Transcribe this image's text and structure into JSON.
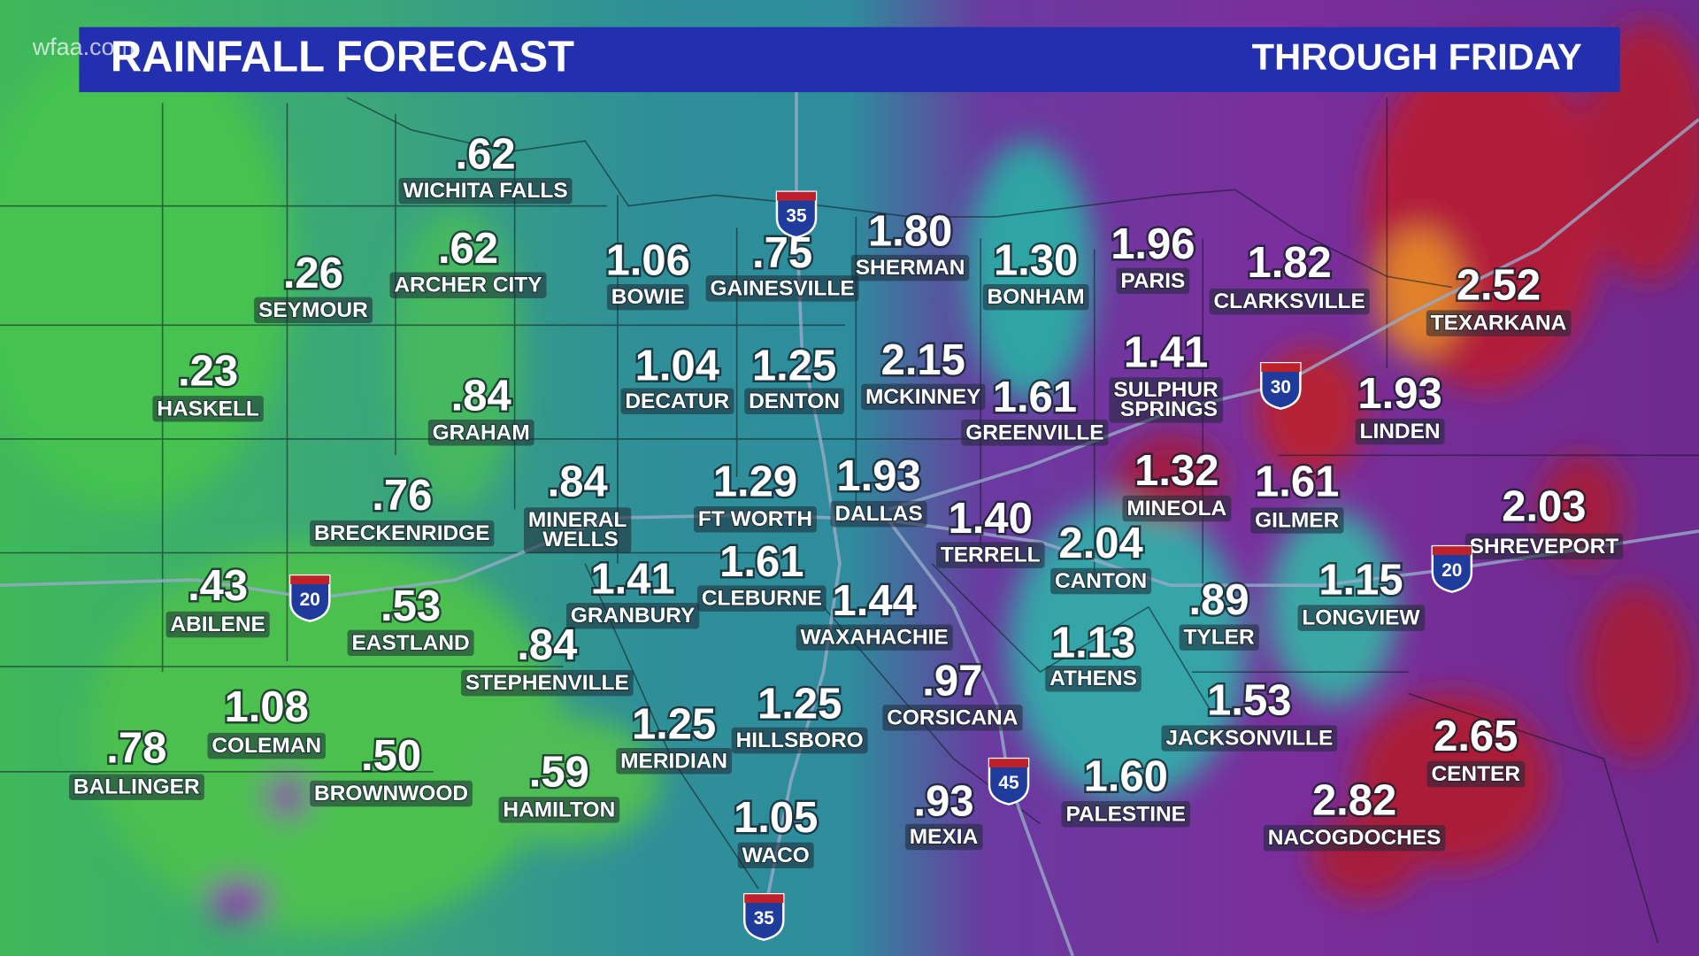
{
  "header": {
    "logo": "wfaa.com",
    "title": "RAINFALL FORECAST",
    "subtitle": "THROUGH FRIDAY"
  },
  "cities": [
    {
      "name": "WICHITA FALLS",
      "amount": ".62"
    },
    {
      "name": "SEYMOUR",
      "amount": ".26"
    },
    {
      "name": "ARCHER CITY",
      "amount": ".62"
    },
    {
      "name": "BOWIE",
      "amount": "1.06"
    },
    {
      "name": "GAINESVILLE",
      "amount": ".75"
    },
    {
      "name": "SHERMAN",
      "amount": "1.80"
    },
    {
      "name": "BONHAM",
      "amount": "1.30"
    },
    {
      "name": "PARIS",
      "amount": "1.96"
    },
    {
      "name": "CLARKSVILLE",
      "amount": "1.82"
    },
    {
      "name": "TEXARKANA",
      "amount": "2.52"
    },
    {
      "name": "HASKELL",
      "amount": ".23"
    },
    {
      "name": "GRAHAM",
      "amount": ".84"
    },
    {
      "name": "DECATUR",
      "amount": "1.04"
    },
    {
      "name": "DENTON",
      "amount": "1.25"
    },
    {
      "name": "MCKINNEY",
      "amount": "2.15"
    },
    {
      "name": "GREENVILLE",
      "amount": "1.61"
    },
    {
      "name": "SULPHUR SPRINGS",
      "amount": "1.41"
    },
    {
      "name": "LINDEN",
      "amount": "1.93"
    },
    {
      "name": "BRECKENRIDGE",
      "amount": ".76"
    },
    {
      "name": "MINERAL WELLS",
      "amount": ".84"
    },
    {
      "name": "FT WORTH",
      "amount": "1.29"
    },
    {
      "name": "DALLAS",
      "amount": "1.93"
    },
    {
      "name": "TERRELL",
      "amount": "1.40"
    },
    {
      "name": "MINEOLA",
      "amount": "1.32"
    },
    {
      "name": "GILMER",
      "amount": "1.61"
    },
    {
      "name": "SHREVEPORT",
      "amount": "2.03"
    },
    {
      "name": "CANTON",
      "amount": "2.04"
    },
    {
      "name": "ABILENE",
      "amount": ".43"
    },
    {
      "name": "EASTLAND",
      "amount": ".53"
    },
    {
      "name": "GRANBURY",
      "amount": "1.41"
    },
    {
      "name": "CLEBURNE",
      "amount": "1.61"
    },
    {
      "name": "WAXAHACHIE",
      "amount": "1.44"
    },
    {
      "name": "TYLER",
      "amount": ".89"
    },
    {
      "name": "LONGVIEW",
      "amount": "1.15"
    },
    {
      "name": "STEPHENVILLE",
      "amount": ".84"
    },
    {
      "name": "ATHENS",
      "amount": "1.13"
    },
    {
      "name": "CORSICANA",
      "amount": ".97"
    },
    {
      "name": "JACKSONVILLE",
      "amount": "1.53"
    },
    {
      "name": "COLEMAN",
      "amount": "1.08"
    },
    {
      "name": "HILLSBORO",
      "amount": "1.25"
    },
    {
      "name": "MERIDIAN",
      "amount": "1.25"
    },
    {
      "name": "CENTER",
      "amount": "2.65"
    },
    {
      "name": "BALLINGER",
      "amount": ".78"
    },
    {
      "name": "BROWNWOOD",
      "amount": ".50"
    },
    {
      "name": "HAMILTON",
      "amount": ".59"
    },
    {
      "name": "PALESTINE",
      "amount": "1.60"
    },
    {
      "name": "NACOGDOCHES",
      "amount": "2.82"
    },
    {
      "name": "MEXIA",
      "amount": ".93"
    },
    {
      "name": "WACO",
      "amount": "1.05"
    }
  ],
  "highways": [
    "35",
    "30",
    "20",
    "20",
    "45",
    "35"
  ]
}
